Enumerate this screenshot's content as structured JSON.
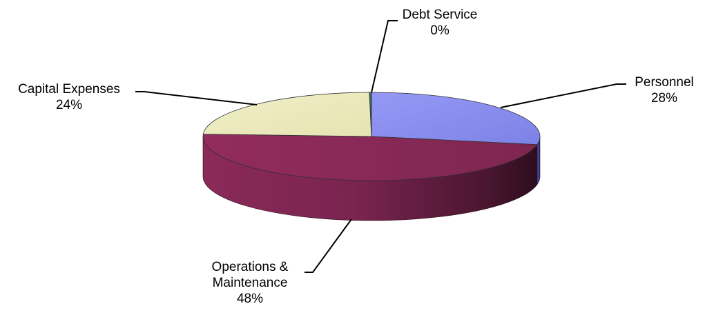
{
  "chart_data": {
    "type": "pie",
    "style": "3d",
    "legend": "none",
    "slices": [
      {
        "name": "Personnel",
        "percent_label": "28%",
        "value": 28,
        "color": "#8b8ff0",
        "label_lines": [
          "Personnel",
          "28%"
        ]
      },
      {
        "name": "Operations & Maintenance",
        "percent_label": "48%",
        "value": 48,
        "color": "#8e2b5a",
        "label_lines": [
          "Operations &",
          "Maintenance",
          "48%"
        ]
      },
      {
        "name": "Capital Expenses",
        "percent_label": "24%",
        "value": 24,
        "color": "#eeecc0",
        "label_lines": [
          "Capital Expenses",
          "24%"
        ]
      },
      {
        "name": "Debt Service",
        "percent_label": "0%",
        "value": 0.2,
        "color": "#2e6b5c",
        "label_lines": [
          "Debt Service",
          "0%"
        ]
      }
    ]
  }
}
